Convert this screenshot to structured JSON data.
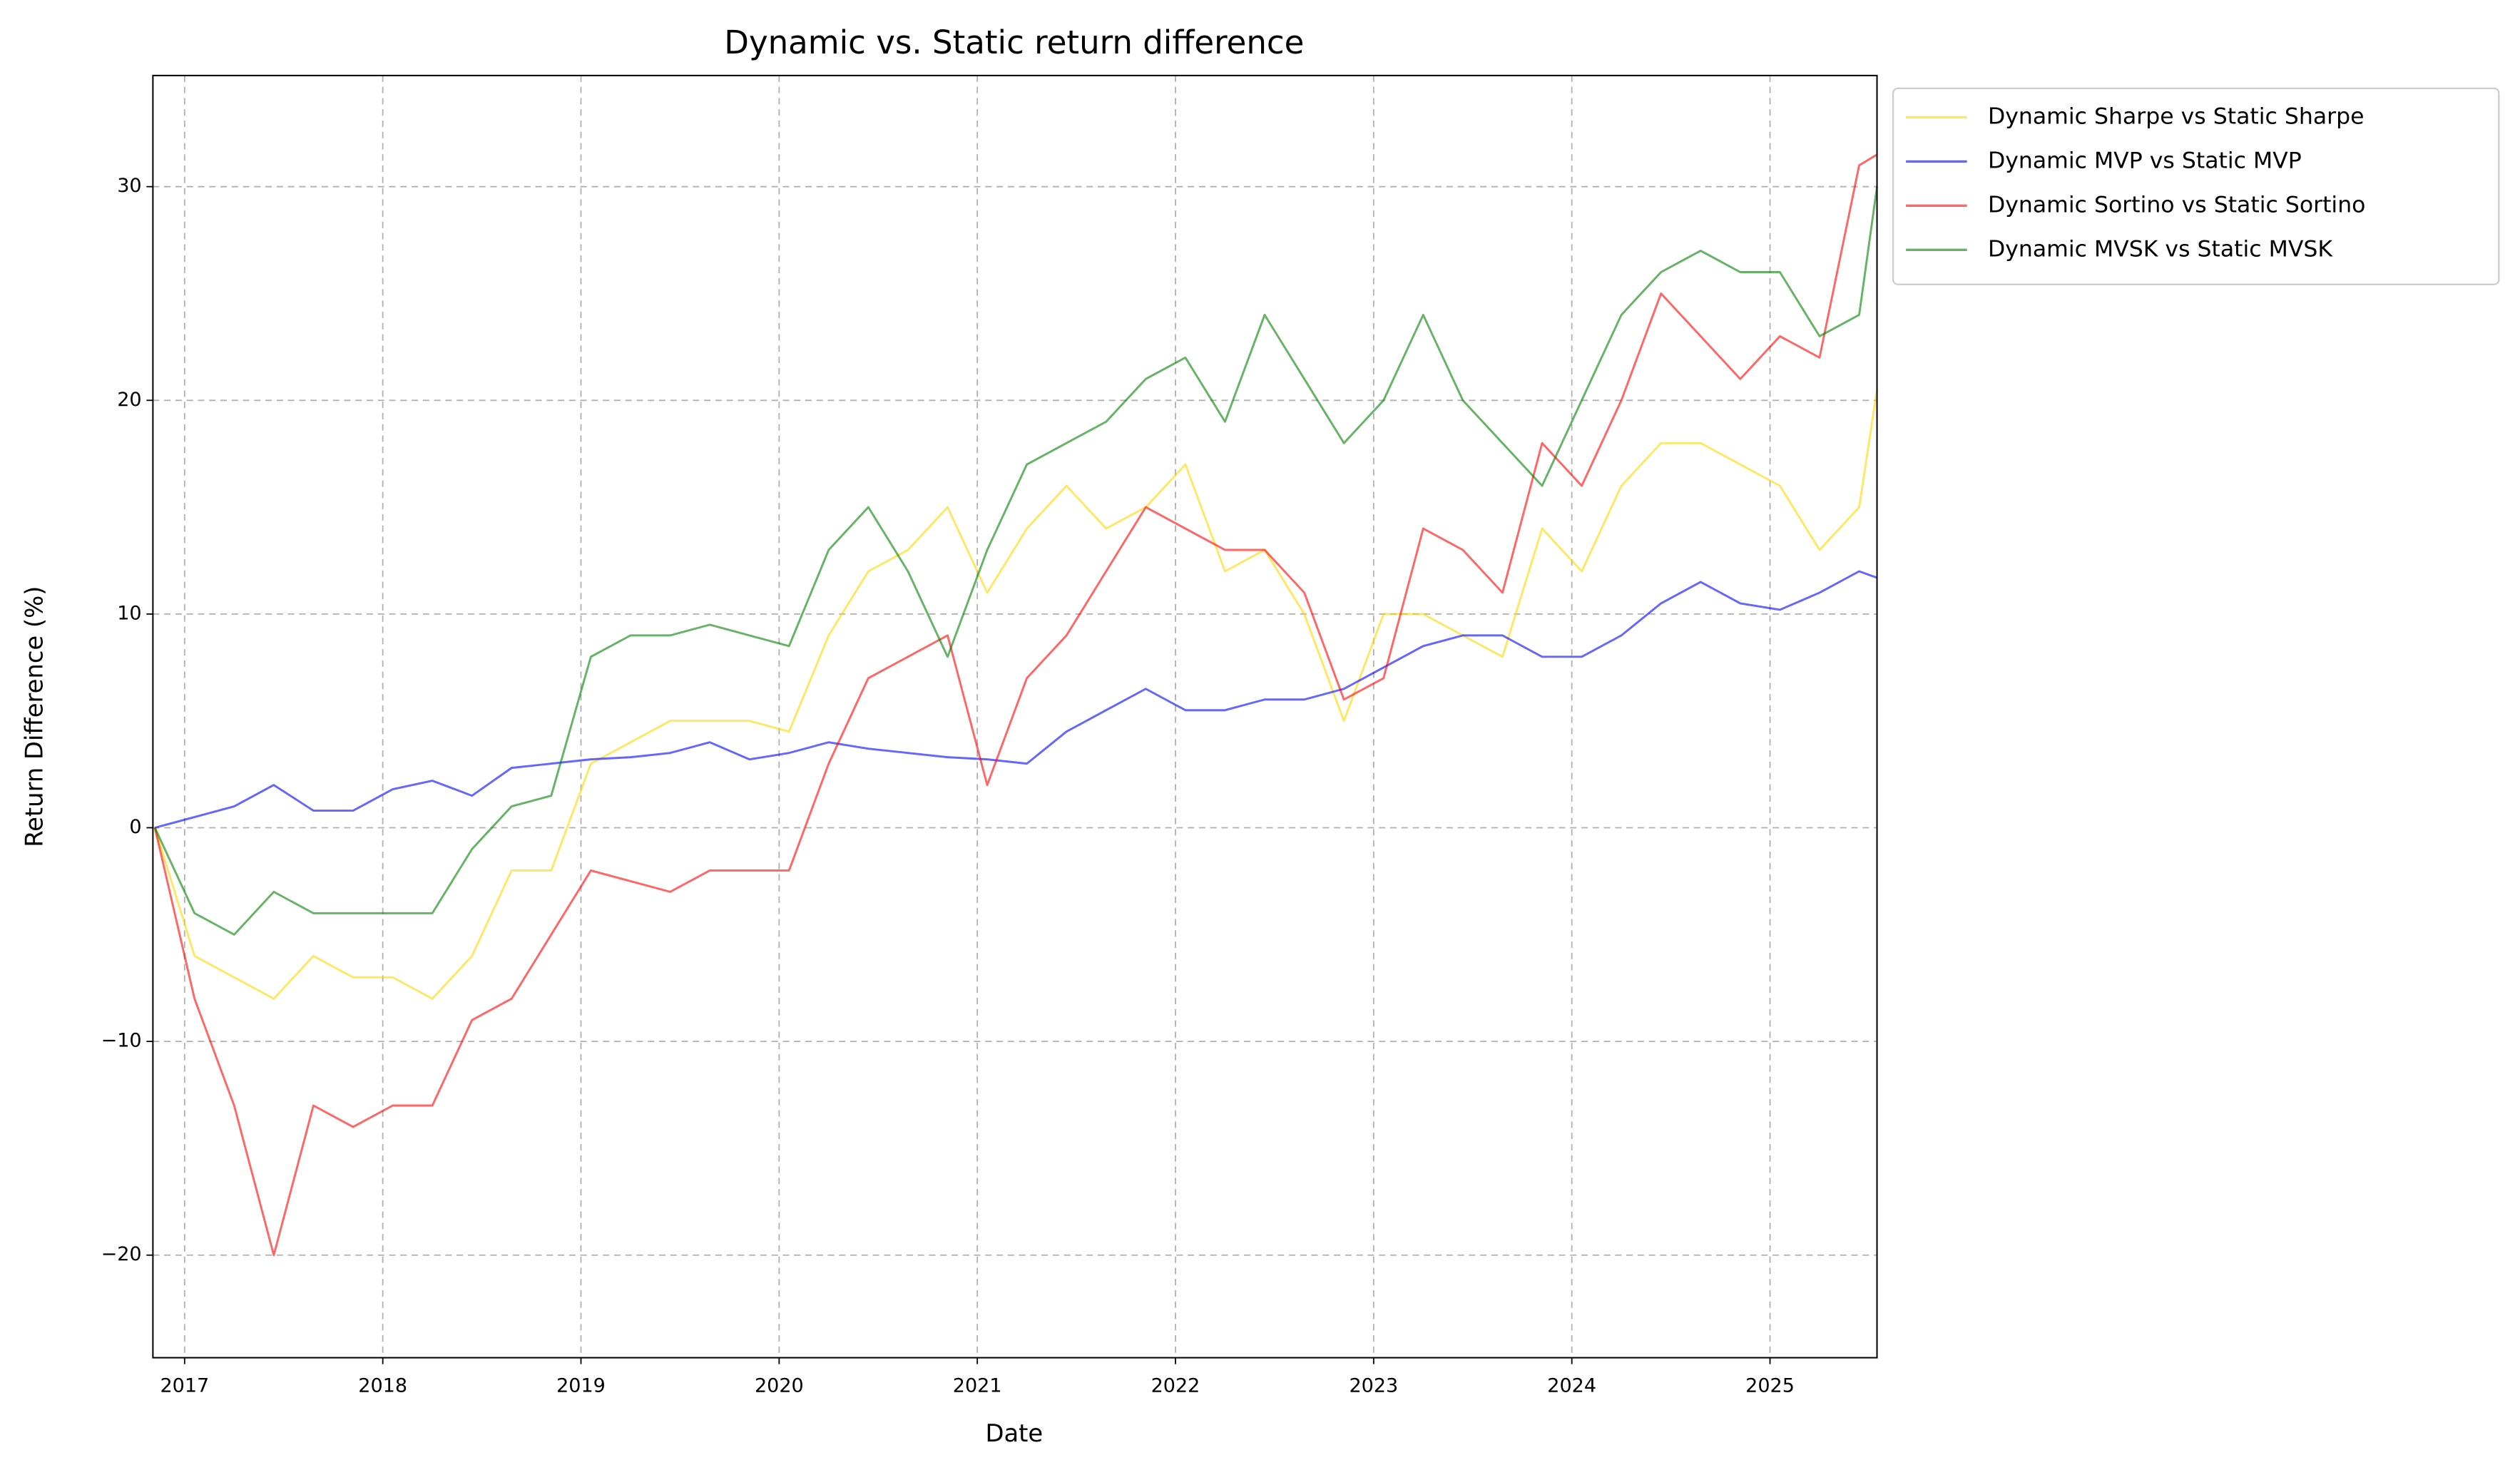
{
  "chart_data": {
    "type": "line",
    "title": "Dynamic vs. Static return difference",
    "x_label": "Date",
    "y_label": "Return Difference (%)",
    "x": [
      2016.85,
      2017.05,
      2017.25,
      2017.45,
      2017.65,
      2017.85,
      2018.05,
      2018.25,
      2018.45,
      2018.65,
      2018.85,
      2019.05,
      2019.25,
      2019.45,
      2019.65,
      2019.85,
      2020.05,
      2020.25,
      2020.45,
      2020.65,
      2020.85,
      2021.05,
      2021.25,
      2021.45,
      2021.65,
      2021.85,
      2022.05,
      2022.25,
      2022.45,
      2022.65,
      2022.85,
      2023.05,
      2023.25,
      2023.45,
      2023.65,
      2023.85,
      2024.05,
      2024.25,
      2024.45,
      2024.65,
      2024.85,
      2025.05,
      2025.25,
      2025.45,
      2025.54
    ],
    "series": [
      {
        "name": "Dynamic Sharpe vs Static Sharpe",
        "color": "#ffd700",
        "values": [
          0,
          -6,
          -7,
          -8,
          -6,
          -7,
          -7,
          -8,
          -6,
          -2,
          -2,
          3,
          4,
          5,
          5,
          5,
          4.5,
          9,
          12,
          13,
          15,
          11,
          14,
          16,
          14,
          15,
          17,
          12,
          13,
          10,
          5,
          10,
          10,
          9,
          8,
          14,
          12,
          16,
          18,
          18,
          17,
          16,
          13,
          15,
          20.5
        ]
      },
      {
        "name": "Dynamic MVP vs Static MVP",
        "color": "#0000ff",
        "values": [
          0,
          0.5,
          1,
          2,
          0.8,
          0.8,
          1.8,
          2.2,
          1.5,
          2.8,
          3,
          3.2,
          3.3,
          3.5,
          4,
          3.2,
          3.5,
          4,
          3.7,
          3.5,
          3.3,
          3.2,
          3,
          4.5,
          5.5,
          6.5,
          5.5,
          5.5,
          6,
          6,
          6.5,
          7.5,
          8.5,
          9,
          9,
          8,
          8,
          9,
          10.5,
          11.5,
          10.5,
          10.2,
          11,
          12,
          11.7
        ]
      },
      {
        "name": "Dynamic Sortino vs Static Sortino",
        "color": "#ff0000",
        "values": [
          0,
          -8,
          -13,
          -20,
          -13,
          -14,
          -13,
          -13,
          -9,
          -8,
          -5,
          -2,
          -2.5,
          -3,
          -2,
          -2,
          -2,
          3,
          7,
          8,
          9,
          2,
          7,
          9,
          12,
          15,
          14,
          13,
          13,
          11,
          6,
          7,
          14,
          13,
          11,
          18,
          16,
          20,
          25,
          23,
          21,
          23,
          22,
          31,
          31.5
        ]
      },
      {
        "name": "Dynamic MVSK vs Static MVSK",
        "color": "#008000",
        "values": [
          0,
          -4,
          -5,
          -3,
          -4,
          -4,
          -4,
          -4,
          -1,
          1,
          1.5,
          8,
          9,
          9,
          9.5,
          9,
          8.5,
          13,
          15,
          12,
          8,
          13,
          17,
          18,
          19,
          21,
          22,
          19,
          24,
          21,
          18,
          20,
          24,
          20,
          18,
          16,
          20,
          24,
          26,
          27,
          26,
          26,
          23,
          24,
          30
        ]
      }
    ],
    "xlim": [
      2016.84,
      2025.54
    ],
    "ylim": [
      -24.8,
      35.2
    ],
    "xticks": [
      2017,
      2018,
      2019,
      2020,
      2021,
      2022,
      2023,
      2024,
      2025
    ],
    "yticks": [
      {
        "value": -20,
        "label": "−20"
      },
      {
        "value": -10,
        "label": "−10"
      },
      0,
      10,
      20,
      30
    ],
    "grid": true,
    "legend": "outside upper right"
  }
}
